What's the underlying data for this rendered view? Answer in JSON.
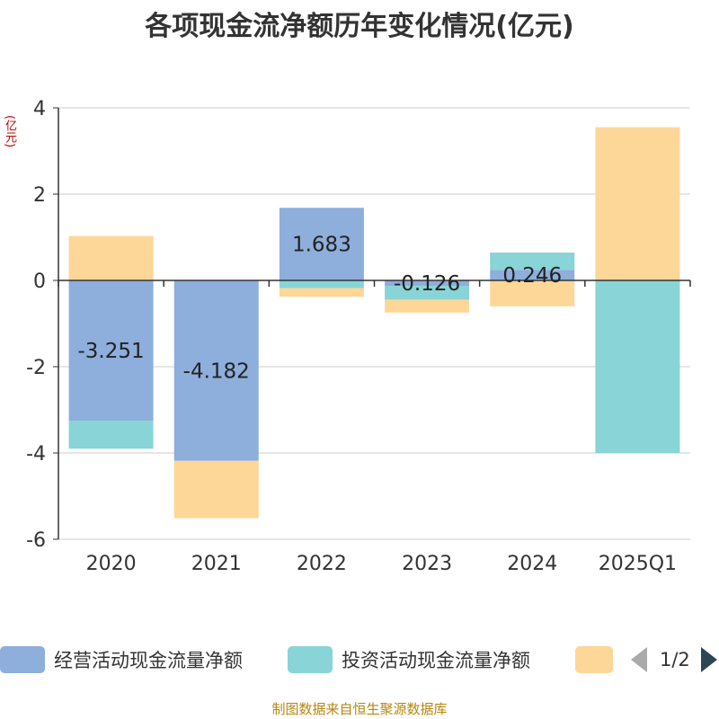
{
  "title": "各项现金流净额历年变化情况(亿元)",
  "y_unit": "(亿元)",
  "source": "制图数据来自恒生聚源数据库",
  "legend": {
    "items": [
      {
        "name": "经营活动现金流量净额",
        "color": "#8eaedb"
      },
      {
        "name": "投资活动现金流量净额",
        "color": "#88d4d6"
      },
      {
        "name": "",
        "color": "#fdd798"
      }
    ],
    "page": "1/2"
  },
  "chart_data": {
    "type": "bar",
    "stacked": true,
    "categories": [
      "2020",
      "2021",
      "2022",
      "2023",
      "2024",
      "2025Q1"
    ],
    "ylim": [
      -6,
      4
    ],
    "yticks": [
      4,
      2,
      0,
      -2,
      -4,
      -6
    ],
    "grid": true,
    "legend_position": "bottom",
    "series": [
      {
        "name": "经营活动现金流量净额",
        "color": "#8eaedb",
        "values": [
          -3.251,
          -4.182,
          1.683,
          -0.126,
          0.246,
          0
        ],
        "labels": [
          "-3.251",
          "-4.182",
          "1.683",
          "-0.126",
          "0.246",
          ""
        ]
      },
      {
        "name": "投资活动现金流量净额",
        "color": "#88d4d6",
        "values": [
          -0.65,
          0,
          -0.18,
          -0.32,
          0.4,
          -4.0
        ],
        "labels": [
          "",
          "",
          "",
          "",
          "",
          ""
        ]
      },
      {
        "color": "#fdd798",
        "values": [
          1.03,
          -1.33,
          -0.2,
          -0.3,
          -0.6,
          3.55
        ],
        "labels": [
          "",
          "",
          "",
          "",
          "",
          ""
        ]
      }
    ]
  }
}
